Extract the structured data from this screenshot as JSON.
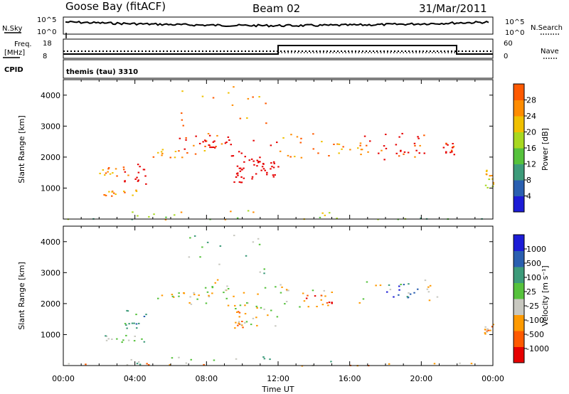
{
  "header": {
    "station": "Goose Bay (fitACF)",
    "beam": "Beam 02",
    "date": "31/Mar/2011"
  },
  "noise_panel": {
    "left_label": "N.Sky",
    "left_ticks": [
      "10^5",
      "10^0"
    ],
    "right_label": "N.Search",
    "right_ticks": [
      "10^5",
      "10^0"
    ]
  },
  "freq_panel": {
    "left_label_1": "Freq.",
    "left_label_2": "[MHz]",
    "left_ticks": [
      "18",
      "8"
    ],
    "right_label": "Nave",
    "right_ticks": [
      "60",
      "0"
    ],
    "cpid_label": "CPID",
    "cpid_value": "themis (tau) 3310"
  },
  "colors": {
    "power": [
      "#1c1cd6",
      "#2a5fb0",
      "#3d9b7a",
      "#56c23c",
      "#a8d820",
      "#f0c000",
      "#ff8c00",
      "#ff5a00",
      "#e60000"
    ],
    "velocity": [
      "#e60000",
      "#ff5a00",
      "#ff9a00",
      "#c8c8c0",
      "#56c23c",
      "#3d9b7a",
      "#2a5fb0",
      "#1c1cd6"
    ]
  },
  "chart_data": [
    {
      "type": "heatmap",
      "name": "power",
      "ylabel": "Slant Range [km]",
      "yticks": [
        "1000",
        "2000",
        "3000",
        "4000"
      ],
      "ylim": [
        0,
        4500
      ],
      "xlim": [
        0,
        24
      ],
      "colorbar": {
        "label": "Power [dB]",
        "ticks": [
          "4",
          "8",
          "12",
          "16",
          "20",
          "24",
          "28"
        ],
        "range": [
          0,
          30
        ]
      },
      "regions": [
        {
          "t0": 4.9,
          "t1": 8.2,
          "r0": 2000,
          "r1": 2400,
          "level": 6
        },
        {
          "t0": 6.0,
          "t1": 9.5,
          "r0": 2200,
          "r1": 2800,
          "level": 7
        },
        {
          "t0": 7.5,
          "t1": 9.2,
          "r0": 2300,
          "r1": 2750,
          "level": 11
        },
        {
          "t0": 9.0,
          "t1": 12.0,
          "r0": 1800,
          "r1": 2600,
          "level": 9
        },
        {
          "t0": 9.8,
          "t1": 12.0,
          "r0": 1300,
          "r1": 2100,
          "level": 15
        },
        {
          "t0": 10.6,
          "t1": 12.0,
          "r0": 1400,
          "r1": 1900,
          "level": 22
        },
        {
          "t0": 9.5,
          "t1": 10.1,
          "r0": 1200,
          "r1": 1800,
          "level": 10
        },
        {
          "t0": 2.0,
          "t1": 3.6,
          "r0": 1400,
          "r1": 1700,
          "level": 6
        },
        {
          "t0": 3.3,
          "t1": 4.6,
          "r0": 1150,
          "r1": 1800,
          "level": 9
        },
        {
          "t0": 2.0,
          "t1": 4.5,
          "r0": 750,
          "r1": 1000,
          "level": 6
        },
        {
          "t0": 12.0,
          "t1": 15.0,
          "r0": 1900,
          "r1": 2800,
          "level": 6
        },
        {
          "t0": 15.0,
          "t1": 17.0,
          "r0": 2100,
          "r1": 2500,
          "level": 6
        },
        {
          "t0": 16.5,
          "t1": 21.5,
          "r0": 1900,
          "r1": 2800,
          "level": 7
        },
        {
          "t0": 17.5,
          "t1": 20.0,
          "r0": 2100,
          "r1": 2700,
          "level": 13
        },
        {
          "t0": 21.2,
          "t1": 21.8,
          "r0": 2100,
          "r1": 2500,
          "level": 8
        },
        {
          "t0": 6.5,
          "t1": 11.5,
          "r0": 3000,
          "r1": 4300,
          "level": 6
        },
        {
          "t0": 3.0,
          "t1": 16.0,
          "r0": 0,
          "r1": 300,
          "level": 5
        },
        {
          "t0": 0.0,
          "t1": 24.0,
          "r0": 0,
          "r1": 100,
          "level": 3
        },
        {
          "t0": 23.5,
          "t1": 24.0,
          "r0": 1000,
          "r1": 1600,
          "level": 5
        }
      ]
    },
    {
      "type": "heatmap",
      "name": "velocity",
      "xlabel": "Time UT",
      "ylabel": "Slant Range [km]",
      "yticks": [
        "1000",
        "2000",
        "3000",
        "4000"
      ],
      "ylim": [
        0,
        4500
      ],
      "xlim": [
        0,
        24
      ],
      "xticks": [
        "00:00",
        "04:00",
        "08:00",
        "12:00",
        "16:00",
        "20:00",
        "00:00"
      ],
      "colorbar": {
        "label": "Velocity [m s⁻¹]",
        "ticks": [
          "-1000",
          "-500",
          "-100",
          "-25",
          "25",
          "100",
          "500",
          "1000"
        ]
      },
      "regions": [
        {
          "t0": 4.9,
          "t1": 8.2,
          "r0": 2000,
          "r1": 2400,
          "level": 3
        },
        {
          "t0": 6.0,
          "t1": 9.5,
          "r0": 2200,
          "r1": 2800,
          "level": 3
        },
        {
          "t0": 9.0,
          "t1": 12.0,
          "r0": 1800,
          "r1": 2600,
          "level": 3
        },
        {
          "t0": 9.8,
          "t1": 12.0,
          "r0": 1300,
          "r1": 2100,
          "level": 3
        },
        {
          "t0": 9.5,
          "t1": 10.1,
          "r0": 1200,
          "r1": 1800,
          "level": 2
        },
        {
          "t0": 3.3,
          "t1": 4.6,
          "r0": 1150,
          "r1": 1800,
          "level": 5
        },
        {
          "t0": 2.0,
          "t1": 4.5,
          "r0": 750,
          "r1": 1000,
          "level": 4
        },
        {
          "t0": 12.0,
          "t1": 15.0,
          "r0": 1900,
          "r1": 2800,
          "level": 3
        },
        {
          "t0": 13.5,
          "t1": 15.0,
          "r0": 1900,
          "r1": 2300,
          "level": 1
        },
        {
          "t0": 16.5,
          "t1": 21.5,
          "r0": 1900,
          "r1": 2800,
          "level": 3
        },
        {
          "t0": 18.0,
          "t1": 20.0,
          "r0": 2200,
          "r1": 2700,
          "level": 6
        },
        {
          "t0": 6.5,
          "t1": 11.5,
          "r0": 3000,
          "r1": 4300,
          "level": 4
        },
        {
          "t0": 3.0,
          "t1": 16.0,
          "r0": 0,
          "r1": 300,
          "level": 4
        },
        {
          "t0": 0.0,
          "t1": 24.0,
          "r0": 0,
          "r1": 100,
          "level": 2
        },
        {
          "t0": 23.5,
          "t1": 24.0,
          "r0": 1000,
          "r1": 1400,
          "level": 2
        }
      ]
    }
  ]
}
